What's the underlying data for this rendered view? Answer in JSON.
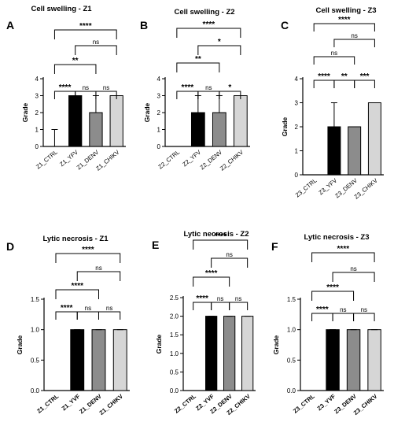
{
  "chart_data": [
    {
      "panel": "A",
      "type": "bar",
      "title": "Cell swelling - Z1",
      "ylabel": "Grade",
      "ylim": [
        0,
        4
      ],
      "yticks": [
        "0",
        "1",
        "2",
        "3",
        "4"
      ],
      "categories": [
        "Z1_CTRL",
        "Z1_YFV",
        "Z1_DENV",
        "Z1_CHIKV"
      ],
      "values": [
        0,
        3,
        2,
        3
      ],
      "error_upper": [
        1,
        3,
        3,
        3
      ],
      "colors": [
        "#ffffff",
        "#000000",
        "#8c8c8c",
        "#d6d6d6"
      ],
      "significance": [
        {
          "from": 0,
          "to": 1,
          "label": "****"
        },
        {
          "from": 1,
          "to": 2,
          "label": "ns"
        },
        {
          "from": 2,
          "to": 3,
          "label": "ns"
        },
        {
          "from": 0,
          "to": 2,
          "label": "**"
        },
        {
          "from": 1,
          "to": 3,
          "label": "ns"
        },
        {
          "from": 0,
          "to": 3,
          "label": "****"
        }
      ]
    },
    {
      "panel": "B",
      "type": "bar",
      "title": "Cell swelling - Z2",
      "ylabel": "Grade",
      "ylim": [
        0,
        4
      ],
      "yticks": [
        "0",
        "1",
        "2",
        "3",
        "4"
      ],
      "categories": [
        "Z2_CTRL",
        "Z2_YFV",
        "Z2_DENV",
        "Z2_CHIKV"
      ],
      "values": [
        0,
        2,
        2,
        3
      ],
      "error_upper": [
        0,
        3,
        3,
        3
      ],
      "colors": [
        "#ffffff",
        "#000000",
        "#8c8c8c",
        "#d6d6d6"
      ],
      "significance": [
        {
          "from": 0,
          "to": 1,
          "label": "****"
        },
        {
          "from": 1,
          "to": 2,
          "label": "ns"
        },
        {
          "from": 2,
          "to": 3,
          "label": "*"
        },
        {
          "from": 0,
          "to": 2,
          "label": "**"
        },
        {
          "from": 1,
          "to": 3,
          "label": "*"
        },
        {
          "from": 0,
          "to": 3,
          "label": "****"
        }
      ]
    },
    {
      "panel": "C",
      "type": "bar",
      "title": "Cell swelling - Z3",
      "ylabel": "Grade",
      "ylim": [
        0,
        4
      ],
      "yticks": [
        "0",
        "1",
        "2",
        "3",
        "4"
      ],
      "categories": [
        "Z3_CTRL",
        "Z3_YFV",
        "Z3_DENV",
        "Z3_CHIKV"
      ],
      "values": [
        0,
        2,
        2,
        3
      ],
      "error_upper": [
        0,
        3,
        2,
        3
      ],
      "colors": [
        "#ffffff",
        "#000000",
        "#8c8c8c",
        "#d6d6d6"
      ],
      "significance": [
        {
          "from": 0,
          "to": 1,
          "label": "****"
        },
        {
          "from": 1,
          "to": 2,
          "label": "**"
        },
        {
          "from": 2,
          "to": 3,
          "label": "***"
        },
        {
          "from": 0,
          "to": 2,
          "label": "ns"
        },
        {
          "from": 1,
          "to": 3,
          "label": "ns"
        },
        {
          "from": 0,
          "to": 3,
          "label": "****"
        }
      ]
    },
    {
      "panel": "D",
      "type": "bar",
      "title": "Lytic necrosis - Z1",
      "ylabel": "Grade",
      "ylim": [
        0,
        1.5
      ],
      "yticks": [
        "0.0",
        "0.5",
        "1.0",
        "1.5"
      ],
      "categories": [
        "Z1_CTRL",
        "Z1_YVF",
        "Z1_DENV",
        "Z1_CHIKV"
      ],
      "values": [
        0,
        1,
        1,
        1
      ],
      "error_upper": [
        0,
        1,
        1,
        1
      ],
      "colors": [
        "#ffffff",
        "#000000",
        "#8c8c8c",
        "#d6d6d6"
      ],
      "significance": [
        {
          "from": 0,
          "to": 1,
          "label": "****"
        },
        {
          "from": 1,
          "to": 2,
          "label": "ns"
        },
        {
          "from": 2,
          "to": 3,
          "label": "ns"
        },
        {
          "from": 0,
          "to": 2,
          "label": "****"
        },
        {
          "from": 1,
          "to": 3,
          "label": "ns"
        },
        {
          "from": 0,
          "to": 3,
          "label": "****"
        }
      ]
    },
    {
      "panel": "E",
      "type": "bar",
      "title": "Lytic necrosis - Z2",
      "ylabel": "Grade",
      "ylim": [
        0,
        2.5
      ],
      "yticks": [
        "0.0",
        "0.5",
        "1.0",
        "1.5",
        "2.0",
        "2.5"
      ],
      "categories": [
        "Z2_CTRL",
        "Z2_YVF",
        "Z2_DENV",
        "Z2_CHIKV"
      ],
      "values": [
        0,
        2,
        2,
        2
      ],
      "error_upper": [
        0,
        2,
        2,
        2
      ],
      "colors": [
        "#ffffff",
        "#000000",
        "#8c8c8c",
        "#d6d6d6"
      ],
      "significance": [
        {
          "from": 0,
          "to": 1,
          "label": "****"
        },
        {
          "from": 1,
          "to": 2,
          "label": "ns"
        },
        {
          "from": 2,
          "to": 3,
          "label": "ns"
        },
        {
          "from": 0,
          "to": 2,
          "label": "****"
        },
        {
          "from": 1,
          "to": 3,
          "label": "ns"
        },
        {
          "from": 0,
          "to": 3,
          "label": "****"
        }
      ]
    },
    {
      "panel": "F",
      "type": "bar",
      "title": "Lytic necrosis - Z3",
      "ylabel": "Grade",
      "ylim": [
        0,
        1.5
      ],
      "yticks": [
        "0.0",
        "0.5",
        "1.0",
        "1.5"
      ],
      "categories": [
        "Z3_CTRL",
        "Z3_YVF",
        "Z3_DENV",
        "Z3_CHIKV"
      ],
      "values": [
        0,
        1,
        1,
        1
      ],
      "error_upper": [
        0,
        1,
        1,
        1
      ],
      "colors": [
        "#ffffff",
        "#000000",
        "#8c8c8c",
        "#d6d6d6"
      ],
      "significance": [
        {
          "from": 0,
          "to": 1,
          "label": "****"
        },
        {
          "from": 1,
          "to": 2,
          "label": "ns"
        },
        {
          "from": 2,
          "to": 3,
          "label": "ns"
        },
        {
          "from": 0,
          "to": 2,
          "label": "****"
        },
        {
          "from": 1,
          "to": 3,
          "label": "ns"
        },
        {
          "from": 0,
          "to": 3,
          "label": "****"
        }
      ]
    }
  ]
}
